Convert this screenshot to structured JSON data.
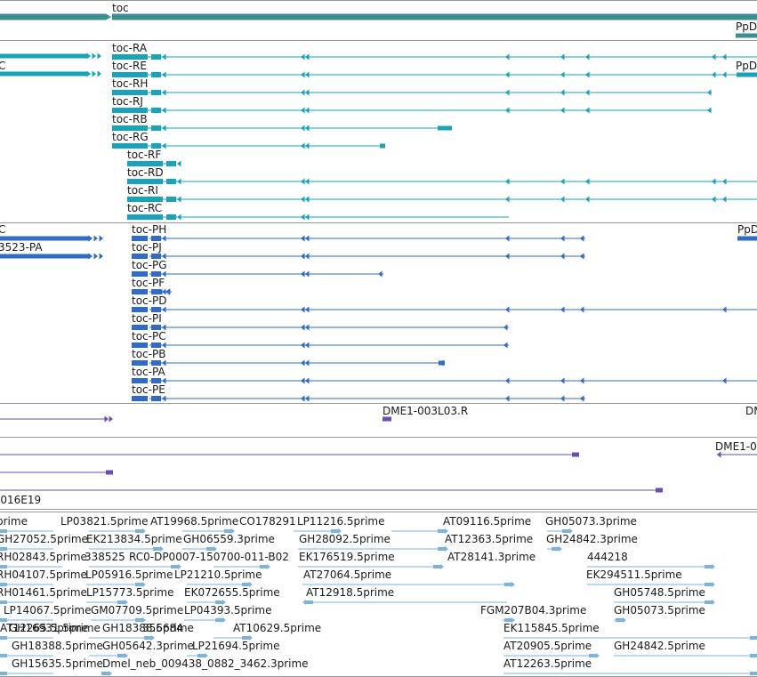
{
  "colors": {
    "gene": "#3d8f8f",
    "transcript_ra": "#1aa3b8",
    "transcript_pa": "#2f6bc7",
    "oligo": "#6a4fb0",
    "est": "#7ab3db",
    "divider": "#999999"
  },
  "gene_track": {
    "left_label": "",
    "gene_label": "toc",
    "right_label": "PpD"
  },
  "transcripts_ra": {
    "left_label": "C",
    "right_label": "PpD",
    "items": [
      "toc-RA",
      "toc-RE",
      "toc-RH",
      "toc-RJ",
      "toc-RB",
      "toc-RG",
      "toc-RF",
      "toc-RD",
      "toc-RI",
      "toc-RC"
    ]
  },
  "transcripts_pa": {
    "left_labels": [
      "C",
      "3523-PA"
    ],
    "right_label": "PpD",
    "items": [
      "toc-PH",
      "toc-PJ",
      "toc-PG",
      "toc-PF",
      "toc-PD",
      "toc-PI",
      "toc-PC",
      "toc-PB",
      "toc-PA",
      "toc-PE"
    ]
  },
  "oligos": {
    "labels": [
      "DME1-003L03.R",
      "DM",
      "DME1-0",
      "-016E19"
    ]
  },
  "ests": {
    "rows": [
      [
        "prime",
        "LP03821.5prime",
        "AT19968.5prime",
        "CO178291",
        "LP11216.5prime",
        "AT09116.5prime",
        "GH05073.3prime"
      ],
      [
        "GH27052.5prime",
        "EK213834.5prime",
        "GH06559.3prime",
        "GH28092.5prime",
        "AT12363.5prime",
        "GH24842.3prime"
      ],
      [
        "RH02843.5prime",
        "338525",
        "RC0-DP0007-150700-011-B02",
        "EK176519.5prime",
        "AT28141.3prime",
        "444218"
      ],
      [
        "RH04107.5prime",
        "LP05916.5prime",
        "LP21210.5prime",
        "AT27064.5prime",
        "EK294511.5prime"
      ],
      [
        "RH01461.5prime",
        "LP15773.5prime",
        "EK072655.5prime",
        "AT12918.5prime",
        "GH05748.5prime"
      ],
      [
        "LP14067.5prime",
        "GM07709.5prime",
        "LP04393.5prime",
        "FGM207B04.3prime",
        "GH05073.5prime"
      ],
      [
        "GH16931.5prime",
        "GH18388.5prime",
        "356684",
        "AT10629.5prime",
        "EK115845.5prime",
        "AT12265.5prime"
      ],
      [
        "GH18388.5prime",
        "GH05642.3prime",
        "LP21694.5prime",
        "AT20905.5prime",
        "GH24842.5prime"
      ],
      [
        "GH15635.5prime",
        "Dmel_neb_009438_0882_3462.3prime",
        "AT12263.5prime"
      ]
    ]
  }
}
